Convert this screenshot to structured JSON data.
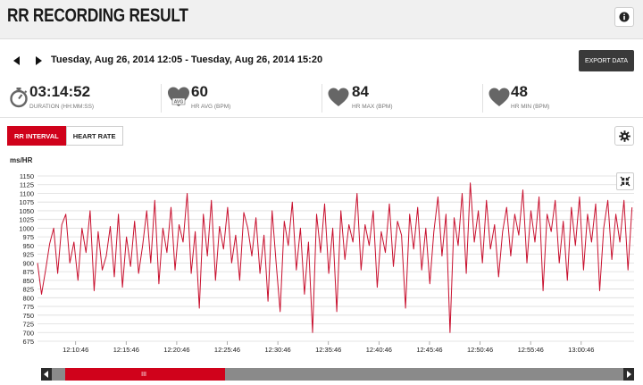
{
  "header": {
    "title": "RR RECORDING RESULT",
    "info_icon": "info-icon"
  },
  "nav": {
    "prev_icon": "triangle-left-icon",
    "next_icon": "triangle-right-icon",
    "date_range": "Tuesday, Aug 26, 2014 12:05 - Tuesday, Aug 26, 2014 15:20",
    "export_label": "EXPORT DATA"
  },
  "stats": [
    {
      "icon": "stopwatch-icon",
      "value": "03:14:52",
      "label": "DURATION (HH:MM:SS)"
    },
    {
      "icon": "heart-avg-icon",
      "badge": "AVG",
      "value": "60",
      "label": "HR AVG (BPM)"
    },
    {
      "icon": "heart-icon",
      "value": "84",
      "label": "HR MAX (BPM)"
    },
    {
      "icon": "heart-icon",
      "value": "48",
      "label": "HR MIN (BPM)"
    }
  ],
  "tabs": [
    {
      "label": "RR INTERVAL",
      "active": true
    },
    {
      "label": "HEART RATE",
      "active": false
    }
  ],
  "settings_icon": "gear-icon",
  "fullscreen_icon": "collapse-arrows-icon",
  "colors": {
    "accent": "#d0021b",
    "line": "#c8102e",
    "dark": "#3a3a3a"
  },
  "chart_data": {
    "type": "line",
    "ylabel": "ms/HR",
    "ylim": [
      675,
      1150
    ],
    "yticks": [
      675,
      700,
      725,
      750,
      775,
      800,
      825,
      850,
      875,
      900,
      925,
      950,
      975,
      1000,
      1025,
      1050,
      1075,
      1100,
      1125,
      1150
    ],
    "xtick_labels": [
      "12:10:46",
      "12:15:46",
      "12:20:46",
      "12:25:46",
      "12:30:46",
      "12:35:46",
      "12:40:46",
      "12:45:46",
      "12:50:46",
      "12:55:46",
      "13:00:46"
    ],
    "xtick_minutes": [
      10.77,
      15.77,
      20.77,
      25.77,
      30.77,
      35.77,
      40.77,
      45.77,
      50.77,
      55.77,
      60.77
    ],
    "xlim_minutes": [
      7,
      66
    ],
    "grid": true,
    "series": [
      {
        "values": [
          [
            7,
            900
          ],
          [
            7.4,
            810
          ],
          [
            7.8,
            880
          ],
          [
            8.2,
            955
          ],
          [
            8.6,
            1000
          ],
          [
            9,
            870
          ],
          [
            9.4,
            1010
          ],
          [
            9.8,
            1040
          ],
          [
            10.2,
            900
          ],
          [
            10.6,
            960
          ],
          [
            11,
            850
          ],
          [
            11.4,
            1000
          ],
          [
            11.8,
            930
          ],
          [
            12.2,
            1050
          ],
          [
            12.6,
            820
          ],
          [
            13,
            990
          ],
          [
            13.4,
            880
          ],
          [
            13.8,
            920
          ],
          [
            14.2,
            1005
          ],
          [
            14.6,
            860
          ],
          [
            15,
            1040
          ],
          [
            15.4,
            830
          ],
          [
            15.8,
            975
          ],
          [
            16.2,
            890
          ],
          [
            16.6,
            1020
          ],
          [
            17,
            870
          ],
          [
            17.4,
            950
          ],
          [
            17.8,
            1050
          ],
          [
            18.2,
            900
          ],
          [
            18.6,
            1080
          ],
          [
            19,
            840
          ],
          [
            19.4,
            1000
          ],
          [
            19.8,
            930
          ],
          [
            20.2,
            1060
          ],
          [
            20.6,
            880
          ],
          [
            21,
            1010
          ],
          [
            21.4,
            960
          ],
          [
            21.8,
            1100
          ],
          [
            22.2,
            870
          ],
          [
            22.6,
            990
          ],
          [
            23,
            770
          ],
          [
            23.4,
            1040
          ],
          [
            23.8,
            920
          ],
          [
            24.2,
            1080
          ],
          [
            24.6,
            850
          ],
          [
            25,
            1005
          ],
          [
            25.4,
            940
          ],
          [
            25.8,
            1060
          ],
          [
            26.2,
            900
          ],
          [
            26.6,
            980
          ],
          [
            27,
            850
          ],
          [
            27.4,
            1045
          ],
          [
            27.8,
            1000
          ],
          [
            28.2,
            920
          ],
          [
            28.6,
            1030
          ],
          [
            29,
            870
          ],
          [
            29.4,
            980
          ],
          [
            29.8,
            790
          ],
          [
            30.2,
            1050
          ],
          [
            30.6,
            900
          ],
          [
            31,
            760
          ],
          [
            31.4,
            1020
          ],
          [
            31.8,
            950
          ],
          [
            32.2,
            1075
          ],
          [
            32.6,
            880
          ],
          [
            33,
            1000
          ],
          [
            33.4,
            810
          ],
          [
            33.8,
            960
          ],
          [
            34.2,
            700
          ],
          [
            34.6,
            1040
          ],
          [
            35,
            930
          ],
          [
            35.4,
            1070
          ],
          [
            35.8,
            870
          ],
          [
            36.2,
            1000
          ],
          [
            36.6,
            760
          ],
          [
            37,
            1050
          ],
          [
            37.4,
            910
          ],
          [
            37.8,
            1010
          ],
          [
            38.2,
            960
          ],
          [
            38.6,
            1100
          ],
          [
            39,
            880
          ],
          [
            39.4,
            1010
          ],
          [
            39.8,
            950
          ],
          [
            40.2,
            1050
          ],
          [
            40.6,
            830
          ],
          [
            41,
            990
          ],
          [
            41.4,
            930
          ],
          [
            41.8,
            1070
          ],
          [
            42.2,
            890
          ],
          [
            42.6,
            1020
          ],
          [
            43,
            980
          ],
          [
            43.4,
            770
          ],
          [
            43.8,
            1040
          ],
          [
            44.2,
            940
          ],
          [
            44.6,
            1060
          ],
          [
            45,
            880
          ],
          [
            45.4,
            1000
          ],
          [
            45.8,
            840
          ],
          [
            46.2,
            990
          ],
          [
            46.6,
            1090
          ],
          [
            47,
            920
          ],
          [
            47.4,
            1040
          ],
          [
            47.8,
            700
          ],
          [
            48.2,
            1030
          ],
          [
            48.6,
            950
          ],
          [
            49,
            1100
          ],
          [
            49.4,
            870
          ],
          [
            49.8,
            1130
          ],
          [
            50.2,
            960
          ],
          [
            50.6,
            1050
          ],
          [
            51,
            900
          ],
          [
            51.4,
            1080
          ],
          [
            51.8,
            940
          ],
          [
            52.2,
            1010
          ],
          [
            52.6,
            860
          ],
          [
            53,
            990
          ],
          [
            53.4,
            1060
          ],
          [
            53.8,
            920
          ],
          [
            54.2,
            1040
          ],
          [
            54.6,
            980
          ],
          [
            55,
            1110
          ],
          [
            55.4,
            900
          ],
          [
            55.8,
            1050
          ],
          [
            56.2,
            960
          ],
          [
            56.6,
            1090
          ],
          [
            57,
            820
          ],
          [
            57.4,
            1040
          ],
          [
            57.8,
            990
          ],
          [
            58.2,
            1080
          ],
          [
            58.6,
            900
          ],
          [
            59,
            1020
          ],
          [
            59.4,
            850
          ],
          [
            59.8,
            1060
          ],
          [
            60.2,
            950
          ],
          [
            60.6,
            1090
          ],
          [
            61,
            880
          ],
          [
            61.4,
            1040
          ],
          [
            61.8,
            960
          ],
          [
            62.2,
            1070
          ],
          [
            62.6,
            820
          ],
          [
            63,
            1000
          ],
          [
            63.4,
            1080
          ],
          [
            63.8,
            910
          ],
          [
            64.2,
            1040
          ],
          [
            64.6,
            960
          ],
          [
            65,
            1080
          ],
          [
            65.4,
            880
          ],
          [
            65.8,
            1060
          ]
        ]
      }
    ]
  },
  "scrollbar": {
    "left_icon": "arrow-left-icon",
    "right_icon": "arrow-right-icon",
    "grip_text": "III",
    "window_start": 0.04,
    "window_end": 0.31
  }
}
